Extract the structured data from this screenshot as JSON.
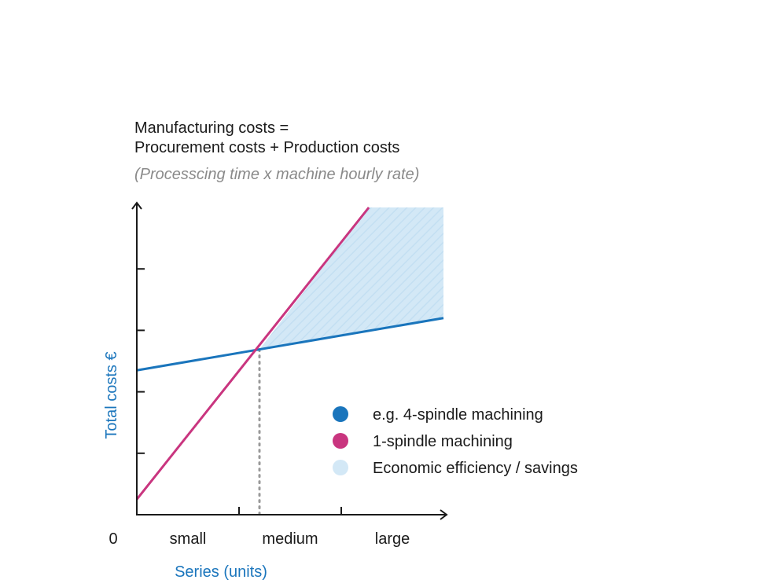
{
  "chart_data": {
    "type": "line",
    "title_lines": [
      "Manufacturing costs =",
      "Procurement costs + Production costs"
    ],
    "subtitle": "(Processcing time x machine hourly rate)",
    "xlabel": "Series (units)",
    "ylabel": "Total costs €",
    "origin_label": "0",
    "categories": [
      "small",
      "medium",
      "large"
    ],
    "xlim": [
      0,
      3
    ],
    "ylim": [
      0,
      5
    ],
    "y_ticks": [
      1,
      2,
      3,
      4
    ],
    "x_ticks": [
      1,
      2
    ],
    "series": [
      {
        "name": "e.g. 4-spindle machining",
        "color": "#1a75bc",
        "x": [
          0,
          3
        ],
        "y": [
          2.35,
          3.2
        ]
      },
      {
        "name": "1-spindle machining",
        "color": "#c9357f",
        "x": [
          0,
          2.27
        ],
        "y": [
          0.25,
          5.0
        ]
      }
    ],
    "crossover_x": 1.2,
    "shaded_region": {
      "name": "Economic efficiency / savings",
      "color": "#d3e8f6"
    },
    "grid": false,
    "legend_position": "bottom-right"
  },
  "colors": {
    "blue": "#1a75bc",
    "magenta": "#c9357f",
    "shade": "#d3e8f6",
    "axis": "#1a1a1a",
    "guide": "#9a9a9a"
  }
}
